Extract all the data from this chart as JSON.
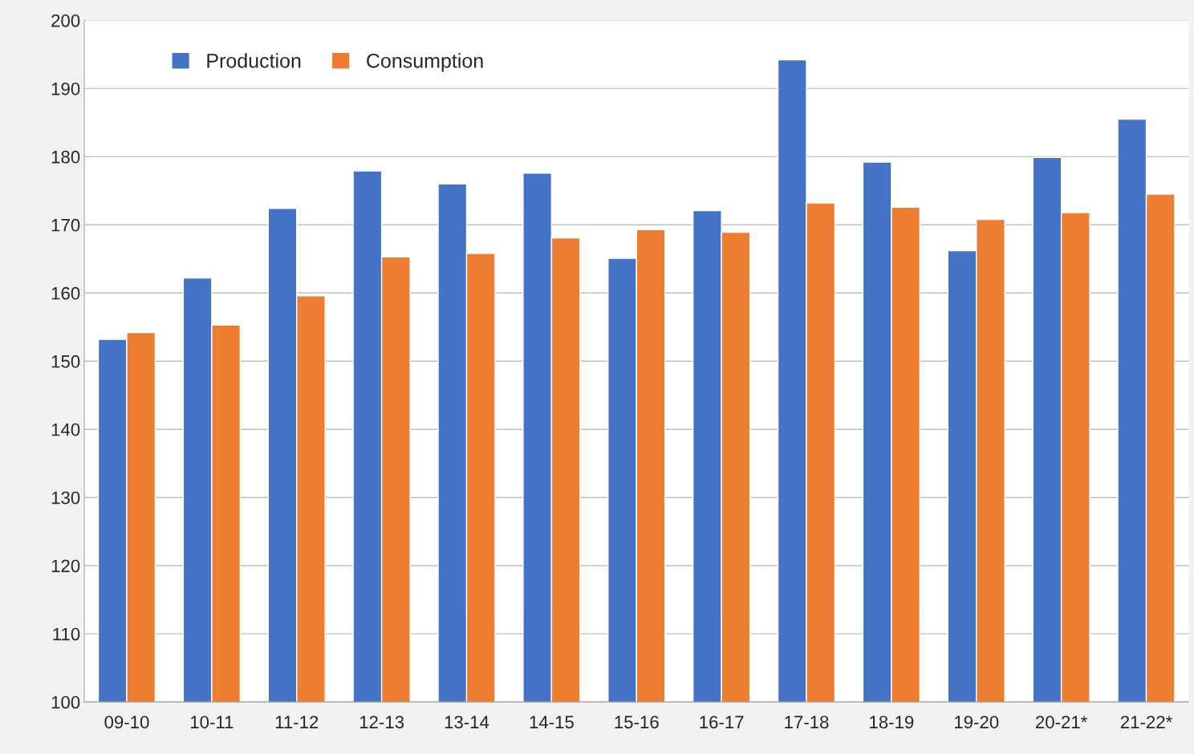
{
  "chart_data": {
    "type": "bar",
    "categories": [
      "09-10",
      "10-11",
      "11-12",
      "12-13",
      "13-14",
      "14-15",
      "15-16",
      "16-17",
      "17-18",
      "18-19",
      "19-20",
      "20-21*",
      "21-22*"
    ],
    "series": [
      {
        "name": "Production",
        "color": "#4472c4",
        "values": [
          153.2,
          162.2,
          172.4,
          177.9,
          176.0,
          177.6,
          165.1,
          172.1,
          194.2,
          179.2,
          166.2,
          179.9,
          185.5
        ]
      },
      {
        "name": "Consumption",
        "color": "#ed7d31",
        "values": [
          154.2,
          155.3,
          159.6,
          165.3,
          165.8,
          168.1,
          169.3,
          168.9,
          173.2,
          172.6,
          170.8,
          171.8,
          174.5
        ]
      }
    ],
    "ylim": [
      100,
      200
    ],
    "yticks": [
      100,
      110,
      120,
      130,
      140,
      150,
      160,
      170,
      180,
      190,
      200
    ],
    "grid": "y",
    "legend": "top left"
  }
}
